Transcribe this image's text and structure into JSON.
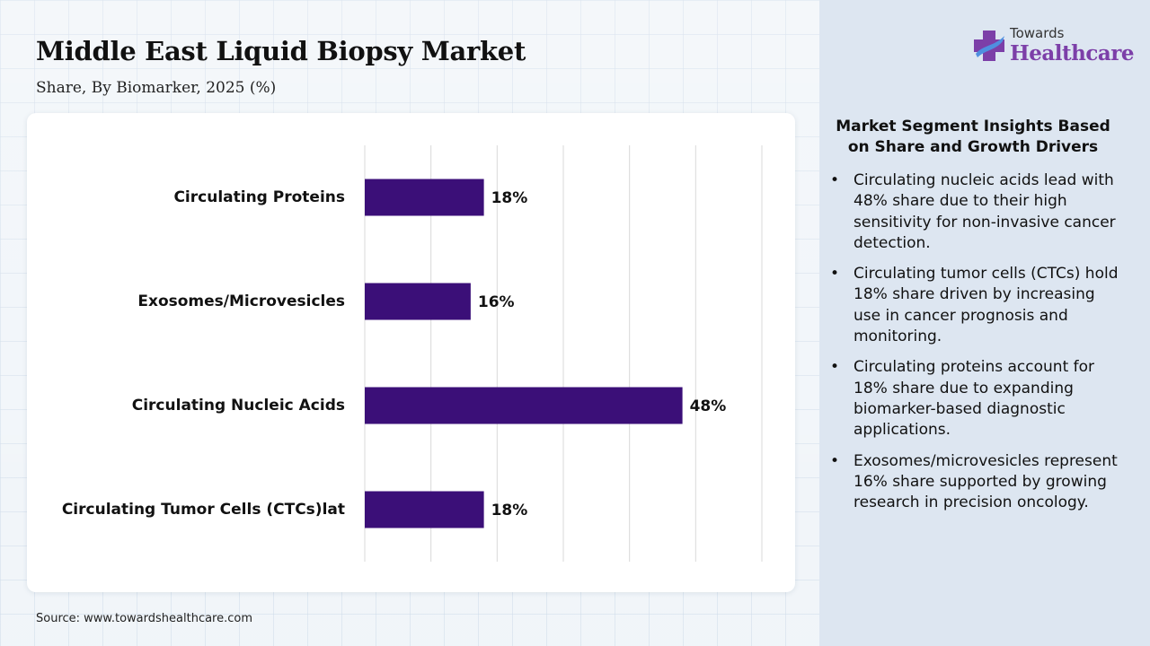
{
  "header": {
    "title": "Middle East Liquid Biopsy Market",
    "subtitle": "Share, By Biomarker, 2025 (%)"
  },
  "chart_data": {
    "type": "bar",
    "orientation": "horizontal",
    "categories": [
      "Circulating Proteins",
      "Exosomes/Microvesicles",
      "Circulating Nucleic Acids",
      "Circulating Tumor Cells (CTCs)lat"
    ],
    "values": [
      18,
      16,
      48,
      18
    ],
    "value_labels": [
      "18%",
      "16%",
      "48%",
      "18%"
    ],
    "xlim": [
      0,
      60
    ],
    "grid": true,
    "bar_color": "#3b0f78",
    "legend": "none"
  },
  "source": "Source: www.towardshealthcare.com",
  "logo": {
    "top_text": "Towards",
    "main_text": "Healthcare"
  },
  "insights": {
    "heading": "Market Segment Insights Based on Share and Growth Drivers",
    "items": [
      "Circulating nucleic acids lead with 48% share due to their high sensitivity for non-invasive cancer detection.",
      "Circulating tumor cells (CTCs) hold 18% share driven by increasing use in cancer prognosis and monitoring.",
      "Circulating proteins account for 18% share due to expanding biomarker-based diagnostic applications.",
      "Exosomes/microvesicles represent 16% share supported by growing research in precision oncology."
    ]
  },
  "colors": {
    "accent": "#3b0f78",
    "logo_purple": "#7c3fa8",
    "logo_blue": "#4f8fe0",
    "panel_bg": "#dde6f1"
  }
}
